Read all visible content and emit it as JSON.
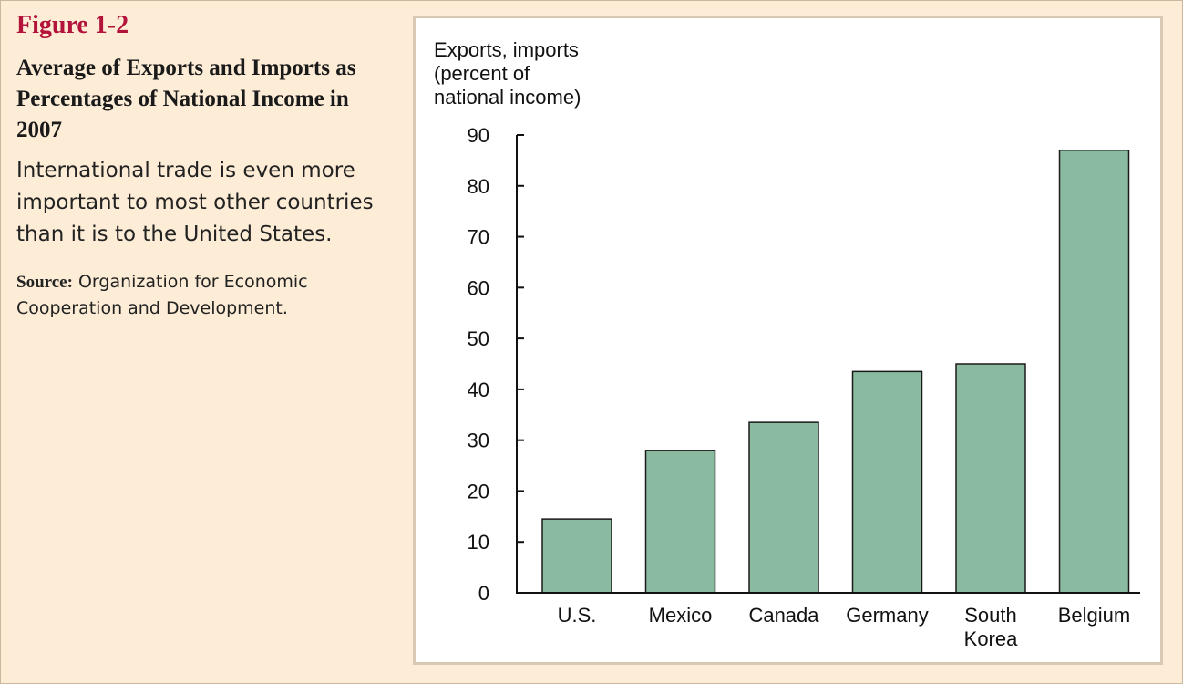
{
  "caption": {
    "figure_label": "Figure 1-2",
    "title": "Average of Exports and Imports as Percentages of National Income in 2007",
    "description": "International trade is even more important to most other countries than it is to the United States.",
    "source_label": "Source:",
    "source_text": "Organization for Economic Cooperation and Development."
  },
  "colors": {
    "background": "#fdecd6",
    "figure_label": "#b3123a",
    "bar_fill": "#8aba9f",
    "bar_stroke": "#1a1a1a"
  },
  "chart_data": {
    "type": "bar",
    "ylabel": [
      "Exports, imports",
      "(percent of",
      "national income)"
    ],
    "categories": [
      [
        "U.S."
      ],
      [
        "Mexico"
      ],
      [
        "Canada"
      ],
      [
        "Germany"
      ],
      [
        "South",
        "Korea"
      ],
      [
        "Belgium"
      ]
    ],
    "values": [
      14.5,
      28,
      33.5,
      43.5,
      45,
      87
    ],
    "ylim": [
      0,
      90
    ],
    "yticks": [
      0,
      10,
      20,
      30,
      40,
      50,
      60,
      70,
      80,
      90
    ],
    "grid": false,
    "legend": "none"
  }
}
